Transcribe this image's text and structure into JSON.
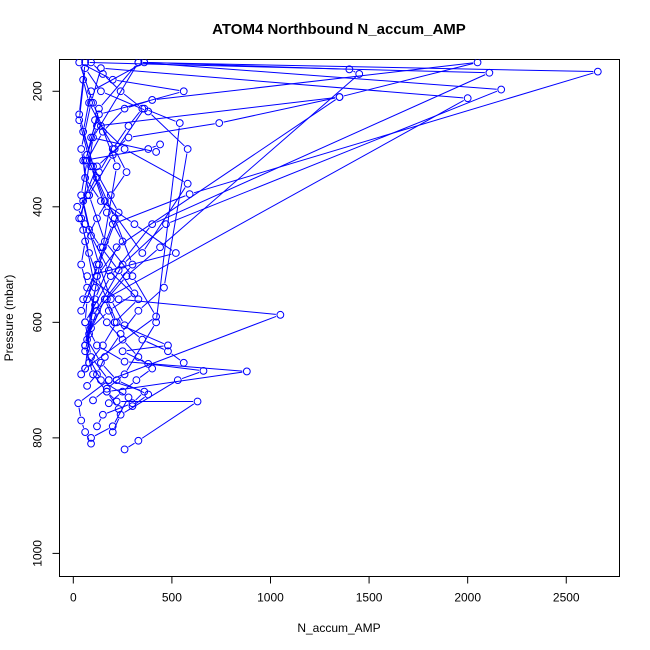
{
  "chart_data": {
    "type": "line",
    "title": "ATOM4 Northbound N_accum_AMP",
    "xlabel": "N_accum_AMP",
    "ylabel": "Pressure (mbar)",
    "xlim": [
      -70,
      2770
    ],
    "ylim": [
      1040,
      145
    ],
    "y_axis_reversed": true,
    "grid": false,
    "legend": "none",
    "x_ticks": [
      0,
      500,
      1000,
      1500,
      2000,
      2500
    ],
    "x_tick_labels": [
      "0",
      "500",
      "1000",
      "1500",
      "2000",
      "2500"
    ],
    "y_ticks": [
      200,
      400,
      600,
      800,
      1000
    ],
    "y_tick_labels": [
      "200",
      "400",
      "600",
      "800",
      "1000"
    ],
    "series_color": "#0000ff",
    "marker": "open-circle",
    "series": [
      {
        "x": [
          90,
          60,
          40,
          25,
          180,
          1050,
          230,
          70,
          520,
          310,
          140,
          60,
          50,
          380,
          440,
          420,
          90,
          130,
          560,
          200,
          30,
          100,
          220,
          150,
          60
        ],
        "y": [
          810,
          790,
          770,
          740,
          700,
          587,
          560,
          520,
          480,
          430,
          390,
          350,
          320,
          300,
          292,
          305,
          280,
          240,
          200,
          180,
          150,
          220,
          330,
          470,
          640
        ]
      },
      {
        "x": [
          260,
          330,
          630,
          220,
          170,
          880,
          260,
          120,
          60,
          70,
          120,
          200,
          590,
          2660,
          330,
          100,
          40,
          110,
          60
        ],
        "y": [
          820,
          805,
          737,
          737,
          720,
          685,
          668,
          640,
          600,
          560,
          500,
          430,
          378,
          166,
          150,
          280,
          420,
          540,
          680
        ]
      },
      {
        "x": [
          200,
          240,
          530,
          660,
          380,
          250,
          480,
          210,
          160,
          2000,
          140,
          90,
          40,
          80,
          160,
          300,
          420,
          60
        ],
        "y": [
          790,
          760,
          700,
          684,
          672,
          650,
          640,
          600,
          560,
          212,
          160,
          220,
          300,
          380,
          460,
          520,
          590,
          680
        ]
      },
      {
        "x": [
          120,
          150,
          300,
          360,
          180,
          90,
          60,
          190,
          400,
          2110,
          60,
          30,
          100,
          230,
          130,
          50
        ],
        "y": [
          780,
          760,
          740,
          720,
          700,
          660,
          600,
          520,
          430,
          168,
          150,
          240,
          330,
          410,
          500,
          560
        ]
      },
      {
        "x": [
          90,
          200,
          280,
          140,
          60,
          100,
          250,
          470,
          2170,
          330,
          130,
          70,
          160,
          350,
          580,
          260,
          110
        ],
        "y": [
          800,
          780,
          730,
          700,
          650,
          590,
          500,
          430,
          197,
          150,
          230,
          310,
          390,
          480,
          360,
          300,
          250
        ]
      },
      {
        "x": [
          230,
          170,
          100,
          60,
          120,
          270,
          440,
          1450,
          1400,
          360,
          90,
          50,
          120,
          210,
          300,
          160,
          80
        ],
        "y": [
          750,
          720,
          690,
          640,
          580,
          520,
          470,
          170,
          162,
          150,
          200,
          270,
          350,
          420,
          500,
          560,
          620
        ]
      },
      {
        "x": [
          300,
          380,
          220,
          140,
          70,
          110,
          220,
          1350,
          740,
          280,
          120,
          50,
          90,
          180,
          330,
          210
        ],
        "y": [
          745,
          725,
          700,
          670,
          630,
          560,
          470,
          210,
          255,
          280,
          330,
          390,
          450,
          510,
          560,
          600
        ]
      },
      {
        "x": [
          70,
          120,
          160,
          240,
          330,
          460,
          580,
          380,
          140,
          60,
          30,
          90,
          170,
          250,
          120,
          40
        ],
        "y": [
          710,
          690,
          660,
          620,
          580,
          540,
          300,
          235,
          200,
          160,
          250,
          330,
          410,
          460,
          520,
          580
        ]
      },
      {
        "x": [
          560,
          480,
          350,
          260,
          190,
          130,
          80,
          40,
          70,
          150,
          260,
          400,
          2050,
          1350,
          120,
          60
        ],
        "y": [
          670,
          650,
          630,
          605,
          560,
          500,
          440,
          380,
          320,
          270,
          230,
          215,
          150,
          210,
          260,
          320
        ]
      },
      {
        "x": [
          100,
          170,
          260,
          420,
          540,
          360,
          200,
          80,
          20,
          60,
          140,
          230,
          310,
          180,
          90
        ],
        "y": [
          735,
          715,
          690,
          600,
          255,
          230,
          310,
          380,
          400,
          430,
          470,
          510,
          550,
          580,
          610
        ]
      },
      {
        "x": [
          40,
          80,
          150,
          220,
          170,
          120,
          80,
          50,
          30,
          70,
          130,
          200,
          280,
          350,
          240,
          150,
          90
        ],
        "y": [
          690,
          670,
          640,
          600,
          560,
          520,
          480,
          440,
          420,
          380,
          340,
          300,
          260,
          230,
          200,
          170,
          150
        ]
      },
      {
        "x": [
          180,
          250,
          320,
          400,
          330,
          250,
          170,
          110,
          70,
          40,
          60,
          120,
          190,
          270,
          210,
          140,
          80,
          50
        ],
        "y": [
          740,
          720,
          700,
          680,
          660,
          630,
          600,
          570,
          540,
          500,
          460,
          420,
          380,
          340,
          300,
          260,
          220,
          180
        ]
      }
    ]
  }
}
